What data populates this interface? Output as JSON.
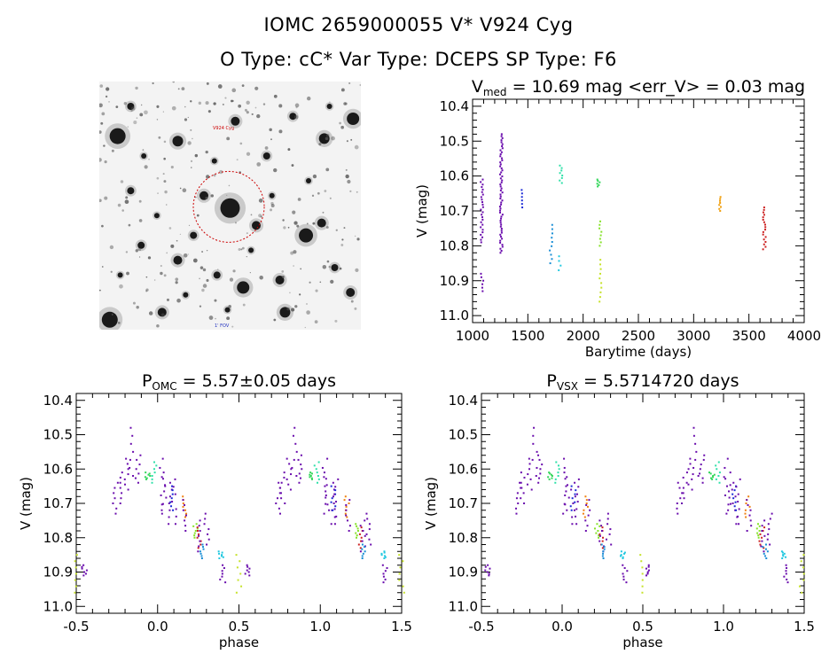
{
  "header": {
    "line1": "IOMC 2659000055    V* V924 Cyg",
    "line2": "O Type: cC*  Var Type: DCEPS  SP Type: F6"
  },
  "sky_image": {
    "label_top": "V924 Cyg",
    "label_bottom": "1' FOV",
    "circle_color": "#cc0000"
  },
  "chart_data": [
    {
      "id": "lightcurve",
      "type": "scatter",
      "title_main": "V",
      "title_sub": "med",
      "title_rest": " = 10.69 mag <err_V> = 0.03 mag",
      "xlabel": "Barytime (days)",
      "ylabel": "V (mag)",
      "xlim": [
        1000,
        4000
      ],
      "ylim": [
        11.02,
        10.38
      ],
      "xticks": [
        1000,
        1500,
        2000,
        2500,
        3000,
        3500,
        4000
      ],
      "yticks": [
        10.4,
        10.5,
        10.6,
        10.7,
        10.8,
        10.9,
        11.0
      ],
      "groups": [
        {
          "x": 1085,
          "ymin": 10.61,
          "ymax": 10.79,
          "color": "#6a0dad",
          "n": 26
        },
        {
          "x": 1085,
          "ymin": 10.88,
          "ymax": 10.93,
          "color": "#6a0dad",
          "n": 6
        },
        {
          "x": 1260,
          "ymin": 10.48,
          "ymax": 10.82,
          "color": "#6a0dad",
          "n": 60
        },
        {
          "x": 1455,
          "ymin": 10.64,
          "ymax": 10.69,
          "color": "#1a2ad6",
          "n": 6
        },
        {
          "x": 1710,
          "ymin": 10.74,
          "ymax": 10.85,
          "color": "#1b8fd6",
          "n": 10
        },
        {
          "x": 1800,
          "ymin": 10.57,
          "ymax": 10.62,
          "color": "#2ee0a8",
          "n": 8
        },
        {
          "x": 1790,
          "ymin": 10.83,
          "ymax": 10.87,
          "color": "#22c8e0",
          "n": 4
        },
        {
          "x": 2140,
          "ymin": 10.61,
          "ymax": 10.63,
          "color": "#33d65a",
          "n": 6
        },
        {
          "x": 2155,
          "ymin": 10.73,
          "ymax": 10.8,
          "color": "#86e22a",
          "n": 8
        },
        {
          "x": 2160,
          "ymin": 10.84,
          "ymax": 10.96,
          "color": "#c6e22a",
          "n": 10
        },
        {
          "x": 3235,
          "ymin": 10.66,
          "ymax": 10.7,
          "color": "#f0a010",
          "n": 8
        },
        {
          "x": 3640,
          "ymin": 10.69,
          "ymax": 10.81,
          "color": "#cc2020",
          "n": 18
        }
      ]
    },
    {
      "id": "phase_omc",
      "type": "scatter",
      "title_main": "P",
      "title_sub": "OMC",
      "title_rest": " = 5.57±0.05 days",
      "xlabel": "phase",
      "ylabel": "V (mag)",
      "xlim": [
        -0.5,
        1.5
      ],
      "ylim": [
        11.02,
        10.38
      ],
      "xticks": [
        -0.5,
        0.0,
        0.5,
        1.0,
        1.5
      ],
      "yticks": [
        10.4,
        10.5,
        10.6,
        10.7,
        10.8,
        10.9,
        11.0
      ]
    },
    {
      "id": "phase_vsx",
      "type": "scatter",
      "title_main": "P",
      "title_sub": "VSX",
      "title_rest": " = 5.5714720 days",
      "xlabel": "phase",
      "ylabel": "V (mag)",
      "xlim": [
        -0.5,
        1.5
      ],
      "ylim": [
        11.02,
        10.38
      ],
      "xticks": [
        -0.5,
        0.0,
        0.5,
        1.0,
        1.5
      ],
      "yticks": [
        10.4,
        10.5,
        10.6,
        10.7,
        10.8,
        10.9,
        11.0
      ]
    }
  ],
  "phase_groups": [
    {
      "phase": 0.04,
      "ymin": 10.61,
      "ymax": 10.72,
      "color": "#6a0dad"
    },
    {
      "phase": 0.08,
      "ymin": 10.64,
      "ymax": 10.76,
      "color": "#6a0dad"
    },
    {
      "phase": 0.16,
      "ymin": 10.68,
      "ymax": 10.74,
      "color": "#f08010"
    },
    {
      "phase": 0.17,
      "ymin": 10.69,
      "ymax": 10.78,
      "color": "#6a0dad"
    },
    {
      "phase": 0.23,
      "ymin": 10.76,
      "ymax": 10.8,
      "color": "#86e22a"
    },
    {
      "phase": 0.25,
      "ymin": 10.77,
      "ymax": 10.83,
      "color": "#cc2020"
    },
    {
      "phase": 0.26,
      "ymin": 10.75,
      "ymax": 10.84,
      "color": "#6a0dad"
    },
    {
      "phase": 0.27,
      "ymin": 10.82,
      "ymax": 10.86,
      "color": "#1b8fd6"
    },
    {
      "phase": 0.3,
      "ymin": 10.73,
      "ymax": 10.82,
      "color": "#6a0dad"
    },
    {
      "phase": 0.39,
      "ymin": 10.84,
      "ymax": 10.86,
      "color": "#22c8e0"
    },
    {
      "phase": 0.4,
      "ymin": 10.88,
      "ymax": 10.93,
      "color": "#6a0dad"
    },
    {
      "phase": 0.5,
      "ymin": 10.85,
      "ymax": 10.96,
      "color": "#c6e22a"
    },
    {
      "phase": 0.55,
      "ymin": 10.88,
      "ymax": 10.91,
      "color": "#6a0dad"
    },
    {
      "phase": 0.74,
      "ymin": 10.64,
      "ymax": 10.73,
      "color": "#6a0dad"
    },
    {
      "phase": 0.77,
      "ymin": 10.61,
      "ymax": 10.7,
      "color": "#6a0dad"
    },
    {
      "phase": 0.81,
      "ymin": 10.57,
      "ymax": 10.66,
      "color": "#6a0dad"
    },
    {
      "phase": 0.84,
      "ymin": 10.48,
      "ymax": 10.62,
      "color": "#6a0dad"
    },
    {
      "phase": 0.88,
      "ymin": 10.56,
      "ymax": 10.64,
      "color": "#6a0dad"
    },
    {
      "phase": 0.94,
      "ymin": 10.61,
      "ymax": 10.63,
      "color": "#33d65a"
    },
    {
      "phase": 0.98,
      "ymin": 10.58,
      "ymax": 10.64,
      "color": "#2ee0a8"
    },
    {
      "phase": 1.03,
      "ymin": 10.57,
      "ymax": 10.73,
      "color": "#6a0dad"
    },
    {
      "phase": 1.08,
      "ymin": 10.65,
      "ymax": 10.72,
      "color": "#1a2ad6"
    },
    {
      "phase": 1.1,
      "ymin": 10.63,
      "ymax": 10.76,
      "color": "#6a0dad"
    }
  ],
  "sky_stars": [
    [
      0.07,
      0.22,
      9
    ],
    [
      0.3,
      0.24,
      6
    ],
    [
      0.52,
      0.16,
      5
    ],
    [
      0.74,
      0.14,
      4
    ],
    [
      0.86,
      0.23,
      6
    ],
    [
      0.97,
      0.15,
      7
    ],
    [
      0.12,
      0.44,
      4
    ],
    [
      0.4,
      0.46,
      5
    ],
    [
      0.5,
      0.51,
      11
    ],
    [
      0.6,
      0.58,
      5
    ],
    [
      0.79,
      0.62,
      8
    ],
    [
      0.85,
      0.57,
      5
    ],
    [
      0.16,
      0.66,
      4
    ],
    [
      0.3,
      0.72,
      5
    ],
    [
      0.45,
      0.78,
      4
    ],
    [
      0.55,
      0.83,
      7
    ],
    [
      0.69,
      0.8,
      5
    ],
    [
      0.9,
      0.75,
      4
    ],
    [
      0.04,
      0.96,
      9
    ],
    [
      0.24,
      0.93,
      5
    ],
    [
      0.71,
      0.93,
      6
    ],
    [
      0.12,
      0.1,
      4
    ],
    [
      0.64,
      0.3,
      4
    ],
    [
      0.36,
      0.62,
      4
    ],
    [
      0.96,
      0.85,
      5
    ],
    [
      0.22,
      0.54,
      3
    ],
    [
      0.66,
      0.46,
      3
    ],
    [
      0.44,
      0.32,
      3
    ],
    [
      0.8,
      0.4,
      3
    ],
    [
      0.58,
      0.68,
      3
    ],
    [
      0.08,
      0.78,
      3
    ],
    [
      0.33,
      0.86,
      3
    ],
    [
      0.49,
      0.92,
      3
    ],
    [
      0.88,
      0.1,
      3
    ],
    [
      0.17,
      0.3,
      3
    ]
  ]
}
